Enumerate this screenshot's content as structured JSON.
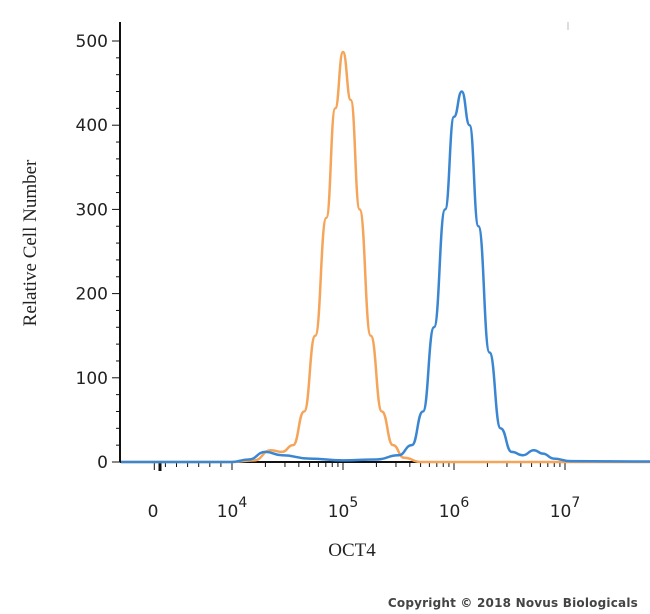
{
  "chart_data": {
    "type": "line",
    "xlabel": "OCT4",
    "ylabel": "Relative Cell Number",
    "x_scale": "log",
    "x_ticks": [
      {
        "label": "0"
      },
      {
        "label": "10",
        "sup": "4"
      },
      {
        "label": "10",
        "sup": "5"
      },
      {
        "label": "10",
        "sup": "6"
      },
      {
        "label": "10",
        "sup": "7"
      }
    ],
    "ylim": [
      0,
      500
    ],
    "y_ticks": [
      0,
      100,
      200,
      300,
      400,
      500
    ],
    "series": [
      {
        "color": "#f5a55a",
        "points": [
          [
            -1,
            0
          ],
          [
            0,
            0
          ],
          [
            0.2,
            2
          ],
          [
            0.35,
            14
          ],
          [
            0.45,
            12
          ],
          [
            0.55,
            20
          ],
          [
            0.65,
            60
          ],
          [
            0.75,
            150
          ],
          [
            0.85,
            290
          ],
          [
            0.93,
            420
          ],
          [
            1.0,
            487
          ],
          [
            1.07,
            430
          ],
          [
            1.15,
            300
          ],
          [
            1.25,
            150
          ],
          [
            1.35,
            60
          ],
          [
            1.45,
            20
          ],
          [
            1.55,
            5
          ],
          [
            1.7,
            0
          ],
          [
            4.7,
            0
          ]
        ]
      },
      {
        "color": "#3a86d2",
        "points": [
          [
            -1,
            0
          ],
          [
            0,
            0
          ],
          [
            0.15,
            3
          ],
          [
            0.3,
            12
          ],
          [
            0.45,
            8
          ],
          [
            0.7,
            4
          ],
          [
            1.0,
            2
          ],
          [
            1.3,
            3
          ],
          [
            1.5,
            8
          ],
          [
            1.62,
            20
          ],
          [
            1.72,
            60
          ],
          [
            1.82,
            160
          ],
          [
            1.92,
            300
          ],
          [
            2.0,
            410
          ],
          [
            2.07,
            440
          ],
          [
            2.14,
            400
          ],
          [
            2.22,
            280
          ],
          [
            2.32,
            130
          ],
          [
            2.42,
            40
          ],
          [
            2.52,
            12
          ],
          [
            2.62,
            8
          ],
          [
            2.72,
            14
          ],
          [
            2.8,
            10
          ],
          [
            2.9,
            4
          ],
          [
            3.05,
            1
          ],
          [
            4.7,
            0
          ]
        ]
      }
    ]
  },
  "copyright": "Copyright © 2018 Novus Biologicals"
}
